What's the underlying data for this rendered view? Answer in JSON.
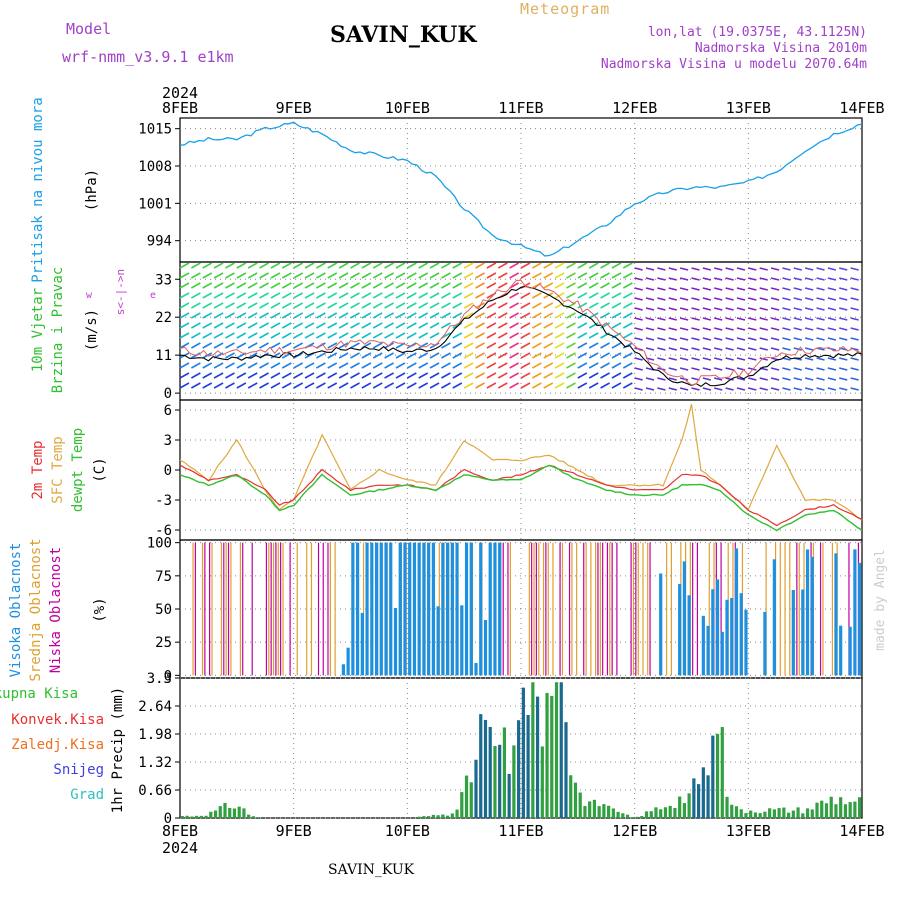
{
  "header": {
    "model_label": "Model",
    "model_name": "wrf-nmm_v3.9.1  e1km",
    "meteogram": "Meteogram",
    "station": "SAVIN_KUK",
    "lonlat": "lon,lat (19.0375E, 43.1125N)",
    "altitude": "Nadmorska Visina 2010m",
    "model_altitude": "Nadmorska Visina u modelu 2070.64m",
    "station_bottom": "SAVIN_KUK",
    "made_by": "made by Angel"
  },
  "time_axis": {
    "year": "2024",
    "ticks": [
      "8FEB",
      "9FEB",
      "10FEB",
      "11FEB",
      "12FEB",
      "13FEB",
      "14FEB"
    ]
  },
  "panels": {
    "pressure": {
      "label1": "Pritisak na nivou mora",
      "unit": "(hPa)",
      "ticks": [
        "994",
        "1001",
        "1008",
        "1015"
      ]
    },
    "wind": {
      "label1": "10m Vjetar",
      "label2": "Brzina i Pravac",
      "unit": "(m/s)",
      "ticks": [
        "0",
        "11",
        "22",
        "33"
      ],
      "compass_w": "w",
      "compass_e": "e",
      "compass_ns": "s<-|->n"
    },
    "temp": {
      "label1": "2m Temp",
      "label2": "SFC Temp",
      "label3": "dewpt Temp",
      "unit": "(C)",
      "ticks": [
        "-6",
        "-3",
        "0",
        "3",
        "6"
      ]
    },
    "cloud": {
      "label1": "Visoka Oblacnost",
      "label2": "Srednja Oblacnost",
      "label3": "Niska Oblacnost",
      "unit": "(%)",
      "ticks": [
        "0",
        "25",
        "50",
        "75",
        "100"
      ]
    },
    "precip": {
      "label_ukupna": "Ukupna Kisa",
      "label_konvek": "Konvek.Kisa",
      "label_zaledj": "Zaledj.Kisa",
      "label_snijeg": "Snijeg",
      "label_grad": "Grad",
      "unit": "1hr Precip (mm)",
      "ticks": [
        "0",
        "0.66",
        "1.32",
        "1.98",
        "2.64",
        "3.3"
      ]
    }
  },
  "colors": {
    "pressure": "#1aa0e8",
    "temp2m": "#e83030",
    "sfc": "#e0a840",
    "dewpt": "#30c030",
    "high_cloud": "#1e90e0",
    "mid_cloud": "#e0a030",
    "low_cloud": "#c000a0",
    "ukupna": "#30c030",
    "konvek": "#e83030",
    "zaledj": "#f07020",
    "snijeg": "#4040e0",
    "grad": "#30c0c0"
  },
  "chart_data": [
    {
      "type": "line",
      "name": "pressure",
      "ylim": [
        990,
        1017
      ],
      "x_hours": [
        0,
        6,
        12,
        18,
        24,
        30,
        36,
        42,
        48,
        54,
        60,
        66,
        72,
        78,
        84,
        90,
        96,
        102,
        108,
        114,
        120,
        126,
        132,
        138,
        144
      ],
      "values": [
        1012,
        1013,
        1013,
        1015,
        1016,
        1014,
        1011,
        1010,
        1009,
        1006,
        1000,
        995,
        993,
        991,
        994,
        997,
        1001,
        1003,
        1004,
        1004,
        1005,
        1007,
        1011,
        1014,
        1016
      ]
    },
    {
      "type": "line",
      "name": "wind_speed",
      "ylim": [
        -2,
        38
      ],
      "x_hours": [
        0,
        6,
        12,
        18,
        24,
        30,
        36,
        42,
        48,
        54,
        60,
        66,
        72,
        78,
        84,
        90,
        96,
        102,
        108,
        114,
        120,
        126,
        132,
        138,
        144
      ],
      "values": [
        11,
        10,
        10,
        11,
        11,
        12,
        13,
        13,
        12,
        13,
        21,
        27,
        31,
        28,
        24,
        18,
        12,
        5,
        2,
        3,
        5,
        10,
        11,
        11,
        11
      ]
    },
    {
      "type": "line",
      "name": "temperature",
      "ylim": [
        -7,
        7
      ],
      "x_hours": [
        0,
        6,
        12,
        18,
        21,
        24,
        30,
        36,
        42,
        48,
        54,
        60,
        66,
        72,
        78,
        84,
        90,
        96,
        102,
        106,
        108,
        110,
        114,
        120,
        126,
        132,
        138,
        144
      ],
      "series": [
        {
          "name": "2m Temp",
          "values": [
            0.5,
            -1,
            -0.5,
            -2,
            -3.5,
            -3,
            0,
            -2,
            -1.5,
            -1.5,
            -2,
            0,
            -1,
            -0.5,
            0.5,
            -0.5,
            -1.5,
            -2,
            -2,
            -0.5,
            -0.5,
            -0.5,
            -1.5,
            -4,
            -5.5,
            -4,
            -3.5,
            -5
          ]
        },
        {
          "name": "SFC Temp",
          "values": [
            1,
            -1,
            3,
            -2,
            -4,
            -3,
            3.5,
            -2,
            0,
            -1,
            -1.5,
            3,
            1,
            1,
            1.5,
            0,
            -1.5,
            -1.5,
            -1.5,
            3,
            6.5,
            0,
            -1.5,
            -4,
            2.5,
            -3,
            -3,
            -5
          ]
        },
        {
          "name": "dewpt Temp",
          "values": [
            -0.5,
            -1.5,
            -0.5,
            -2.5,
            -4,
            -3.5,
            -0.5,
            -2.5,
            -2,
            -1.5,
            -2,
            -0.5,
            -1,
            -1,
            0.5,
            -1,
            -2,
            -2.5,
            -2.5,
            -1.5,
            -1.5,
            -1.5,
            -2,
            -4.5,
            -6,
            -4.5,
            -4,
            -6
          ]
        }
      ]
    },
    {
      "type": "bar",
      "name": "cloud_cover",
      "ylim": [
        0,
        100
      ]
    },
    {
      "type": "bar",
      "name": "precipitation",
      "ylim": [
        0,
        3.3
      ],
      "x_hours": [
        0,
        3,
        6,
        9,
        12,
        15,
        18,
        21,
        24,
        36,
        48,
        57,
        60,
        62,
        64,
        66,
        68,
        70,
        72,
        74,
        76,
        78,
        80,
        82,
        84,
        86,
        96,
        108,
        111,
        112,
        113,
        114,
        115,
        116,
        118,
        120,
        126,
        132,
        138,
        144
      ],
      "values": [
        0.05,
        0.05,
        0.1,
        0.25,
        0.35,
        0.05,
        0,
        0,
        0,
        0,
        0,
        0.1,
        0.6,
        1.2,
        2.3,
        2.7,
        1.8,
        1.0,
        2.4,
        2.9,
        2.2,
        2.5,
        3.0,
        1.6,
        0.8,
        0.4,
        0,
        0.6,
        1.3,
        2.2,
        2.9,
        2.0,
        1.4,
        0.3,
        0.2,
        0.2,
        0.2,
        0.2,
        0.5,
        0.4
      ]
    }
  ]
}
